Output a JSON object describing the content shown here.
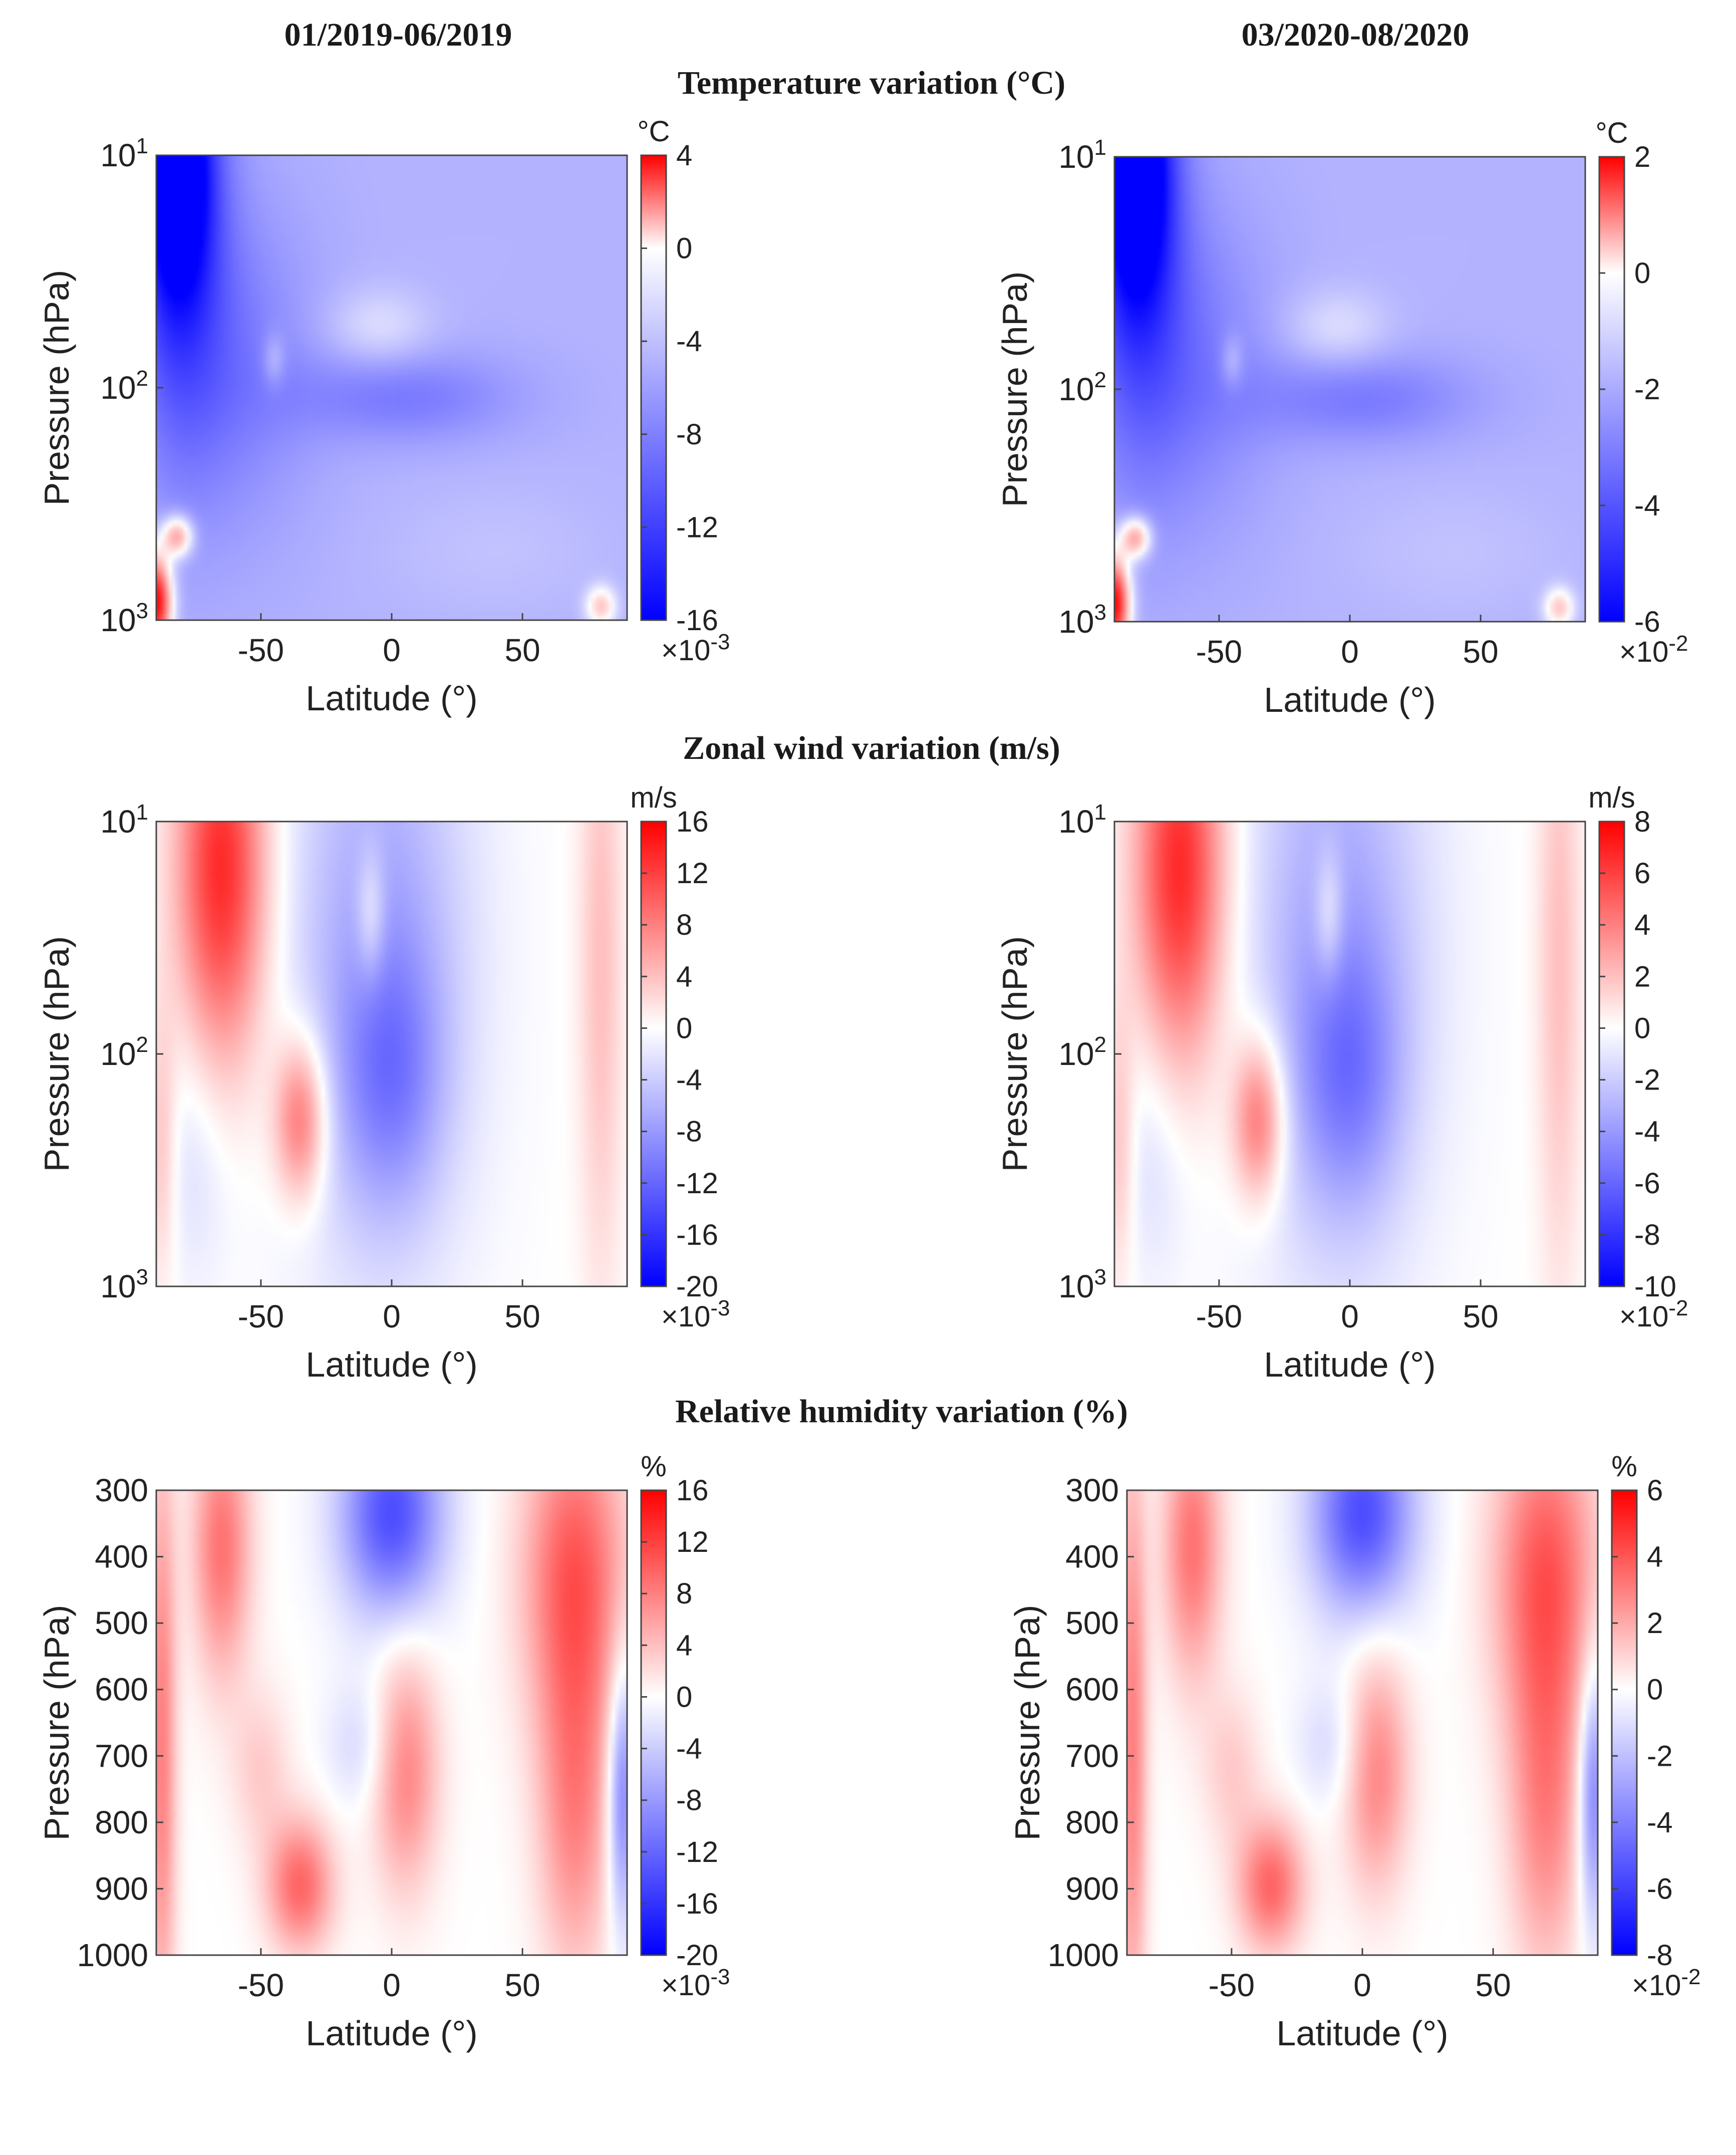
{
  "headers": {
    "period_left": "01/2019-06/2019",
    "period_right": "03/2020-08/2020",
    "temperature": "Temperature variation (°C)",
    "wind": "Zonal wind variation (m/s)",
    "humidity": "Relative humidity variation (%)"
  },
  "colors": {
    "high": "#ff0000",
    "mid": "#ffffff",
    "low": "#0000ff",
    "axis": "#333333"
  },
  "chart_data": [
    {
      "id": "temp-2019",
      "type": "heatmap",
      "variable": "temperature",
      "title": "",
      "xlabel": "Latitude (°)",
      "ylabel": "Pressure (hPa)",
      "xlim": [
        -90,
        90
      ],
      "xticks": [
        -50,
        0,
        50
      ],
      "xtick_labels": [
        "-50",
        "0",
        "50"
      ],
      "yscale": "log",
      "ylim": [
        1000,
        10
      ],
      "yticks": [
        10,
        100,
        1000
      ],
      "ytick_labels": [
        {
          "b": "10",
          "e": "1"
        },
        {
          "b": "10",
          "e": "2"
        },
        {
          "b": "10",
          "e": "3"
        }
      ],
      "colorbar": {
        "unit": "°C",
        "min": -16,
        "max": 4,
        "ticks": [
          4,
          0,
          -4,
          -8,
          -12,
          -16
        ],
        "tick_labels": [
          "4",
          "0",
          "-4",
          "-8",
          "-12",
          "-16"
        ],
        "multiplier_base": "×10",
        "multiplier_exp": "-3"
      }
    },
    {
      "id": "temp-2020",
      "type": "heatmap",
      "variable": "temperature",
      "title": "",
      "xlabel": "Latitude (°)",
      "ylabel": "Pressure (hPa)",
      "xlim": [
        -90,
        90
      ],
      "xticks": [
        -50,
        0,
        50
      ],
      "xtick_labels": [
        "-50",
        "0",
        "50"
      ],
      "yscale": "log",
      "ylim": [
        1000,
        10
      ],
      "yticks": [
        10,
        100,
        1000
      ],
      "ytick_labels": [
        {
          "b": "10",
          "e": "1"
        },
        {
          "b": "10",
          "e": "2"
        },
        {
          "b": "10",
          "e": "3"
        }
      ],
      "colorbar": {
        "unit": "°C",
        "min": -6,
        "max": 2,
        "ticks": [
          2,
          0,
          -2,
          -4,
          -6
        ],
        "tick_labels": [
          "2",
          "0",
          "-2",
          "-4",
          "-6"
        ],
        "multiplier_base": "×10",
        "multiplier_exp": "-2"
      }
    },
    {
      "id": "wind-2019",
      "type": "heatmap",
      "variable": "wind",
      "title": "",
      "xlabel": "Latitude (°)",
      "ylabel": "Pressure (hPa)",
      "xlim": [
        -90,
        90
      ],
      "xticks": [
        -50,
        0,
        50
      ],
      "xtick_labels": [
        "-50",
        "0",
        "50"
      ],
      "yscale": "log",
      "ylim": [
        1000,
        10
      ],
      "yticks": [
        10,
        100,
        1000
      ],
      "ytick_labels": [
        {
          "b": "10",
          "e": "1"
        },
        {
          "b": "10",
          "e": "2"
        },
        {
          "b": "10",
          "e": "3"
        }
      ],
      "colorbar": {
        "unit": "m/s",
        "min": -20,
        "max": 16,
        "ticks": [
          16,
          12,
          8,
          4,
          0,
          -4,
          -8,
          -12,
          -16,
          -20
        ],
        "tick_labels": [
          "16",
          "12",
          "8",
          "4",
          "0",
          "-4",
          "-8",
          "-12",
          "-16",
          "-20"
        ],
        "multiplier_base": "×10",
        "multiplier_exp": "-3"
      }
    },
    {
      "id": "wind-2020",
      "type": "heatmap",
      "variable": "wind",
      "title": "",
      "xlabel": "Latitude (°)",
      "ylabel": "Pressure (hPa)",
      "xlim": [
        -90,
        90
      ],
      "xticks": [
        -50,
        0,
        50
      ],
      "xtick_labels": [
        "-50",
        "0",
        "50"
      ],
      "yscale": "log",
      "ylim": [
        1000,
        10
      ],
      "yticks": [
        10,
        100,
        1000
      ],
      "ytick_labels": [
        {
          "b": "10",
          "e": "1"
        },
        {
          "b": "10",
          "e": "2"
        },
        {
          "b": "10",
          "e": "3"
        }
      ],
      "colorbar": {
        "unit": "m/s",
        "min": -10,
        "max": 8,
        "ticks": [
          8,
          6,
          4,
          2,
          0,
          -2,
          -4,
          -6,
          -8,
          -10
        ],
        "tick_labels": [
          "8",
          "6",
          "4",
          "2",
          "0",
          "-2",
          "-4",
          "-6",
          "-8",
          "-10"
        ],
        "multiplier_base": "×10",
        "multiplier_exp": "-2"
      }
    },
    {
      "id": "rh-2019",
      "type": "heatmap",
      "variable": "humidity",
      "title": "",
      "xlabel": "Latitude (°)",
      "ylabel": "Pressure (hPa)",
      "xlim": [
        -90,
        90
      ],
      "xticks": [
        -50,
        0,
        50
      ],
      "xtick_labels": [
        "-50",
        "0",
        "50"
      ],
      "yscale": "linear",
      "ylim": [
        1000,
        300
      ],
      "yticks": [
        300,
        400,
        500,
        600,
        700,
        800,
        900,
        1000
      ],
      "ytick_labels": [
        {
          "b": "300"
        },
        {
          "b": "400"
        },
        {
          "b": "500"
        },
        {
          "b": "600"
        },
        {
          "b": "700"
        },
        {
          "b": "800"
        },
        {
          "b": "900"
        },
        {
          "b": "1000"
        }
      ],
      "colorbar": {
        "unit": "%",
        "min": -20,
        "max": 16,
        "ticks": [
          16,
          12,
          8,
          4,
          0,
          -4,
          -8,
          -12,
          -16,
          -20
        ],
        "tick_labels": [
          "16",
          "12",
          "8",
          "4",
          "0",
          "-4",
          "-8",
          "-12",
          "-16",
          "-20"
        ],
        "multiplier_base": "×10",
        "multiplier_exp": "-3"
      }
    },
    {
      "id": "rh-2020",
      "type": "heatmap",
      "variable": "humidity",
      "title": "",
      "xlabel": "Latitude (°)",
      "ylabel": "Pressure (hPa)",
      "xlim": [
        -90,
        90
      ],
      "xticks": [
        -50,
        0,
        50
      ],
      "xtick_labels": [
        "-50",
        "0",
        "50"
      ],
      "yscale": "linear",
      "ylim": [
        1000,
        300
      ],
      "yticks": [
        300,
        400,
        500,
        600,
        700,
        800,
        900,
        1000
      ],
      "ytick_labels": [
        {
          "b": "300"
        },
        {
          "b": "400"
        },
        {
          "b": "500"
        },
        {
          "b": "600"
        },
        {
          "b": "700"
        },
        {
          "b": "800"
        },
        {
          "b": "900"
        },
        {
          "b": "1000"
        }
      ],
      "colorbar": {
        "unit": "%",
        "min": -8,
        "max": 6,
        "ticks": [
          6,
          4,
          2,
          0,
          -2,
          -4,
          -6,
          -8
        ],
        "tick_labels": [
          "6",
          "4",
          "2",
          "0",
          "-2",
          "-4",
          "-6",
          "-8"
        ],
        "multiplier_base": "×10",
        "multiplier_exp": "-2"
      }
    }
  ]
}
